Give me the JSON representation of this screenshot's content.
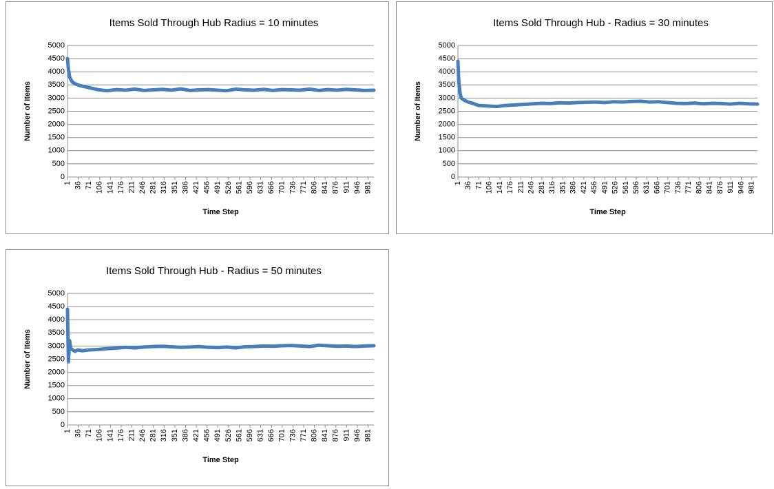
{
  "chart_data": [
    {
      "type": "line",
      "title": "Items Sold Through Hub Radius = 10 minutes",
      "x_label": "Time Step",
      "y_label": "Number of Items",
      "x": [
        1,
        4,
        8,
        12,
        18,
        25,
        35,
        50,
        70,
        100,
        130,
        160,
        190,
        220,
        250,
        280,
        310,
        340,
        370,
        400,
        430,
        460,
        490,
        520,
        550,
        580,
        610,
        640,
        670,
        700,
        730,
        760,
        790,
        820,
        850,
        880,
        910,
        940,
        970,
        1000
      ],
      "values": [
        4500,
        4100,
        3800,
        3700,
        3600,
        3550,
        3500,
        3450,
        3400,
        3320,
        3280,
        3320,
        3300,
        3340,
        3290,
        3310,
        3330,
        3300,
        3350,
        3290,
        3310,
        3320,
        3300,
        3280,
        3340,
        3310,
        3300,
        3330,
        3290,
        3320,
        3310,
        3300,
        3340,
        3290,
        3320,
        3300,
        3330,
        3310,
        3290,
        3300
      ],
      "color": "#4a7ebb",
      "xlim": [
        1,
        1000
      ],
      "ylim": [
        0,
        5000
      ],
      "xticks": [
        1,
        36,
        71,
        106,
        141,
        176,
        211,
        246,
        281,
        316,
        351,
        386,
        421,
        456,
        491,
        526,
        561,
        596,
        631,
        666,
        701,
        736,
        771,
        806,
        841,
        876,
        911,
        946,
        981
      ],
      "yticks": [
        0,
        500,
        1000,
        1500,
        2000,
        2500,
        3000,
        3500,
        4000,
        4500,
        5000
      ],
      "grid": true
    },
    {
      "type": "line",
      "title": "Items Sold Through Hub - Radius = 30 minutes",
      "x_label": "Time Step",
      "y_label": "Number of Items",
      "x": [
        1,
        4,
        8,
        12,
        18,
        25,
        35,
        50,
        70,
        100,
        130,
        160,
        190,
        220,
        250,
        280,
        310,
        340,
        370,
        400,
        430,
        460,
        490,
        520,
        550,
        580,
        610,
        640,
        670,
        700,
        730,
        760,
        790,
        820,
        850,
        880,
        910,
        940,
        970,
        1000
      ],
      "values": [
        4400,
        3600,
        3200,
        3000,
        2950,
        2900,
        2850,
        2800,
        2720,
        2700,
        2680,
        2720,
        2740,
        2760,
        2780,
        2800,
        2790,
        2820,
        2810,
        2830,
        2840,
        2850,
        2830,
        2860,
        2850,
        2870,
        2880,
        2850,
        2860,
        2830,
        2800,
        2790,
        2810,
        2780,
        2800,
        2790,
        2770,
        2800,
        2780,
        2770
      ],
      "color": "#4a7ebb",
      "xlim": [
        1,
        1000
      ],
      "ylim": [
        0,
        5000
      ],
      "xticks": [
        1,
        36,
        71,
        106,
        141,
        176,
        211,
        246,
        281,
        316,
        351,
        386,
        421,
        456,
        491,
        526,
        561,
        596,
        631,
        666,
        701,
        736,
        771,
        806,
        841,
        876,
        911,
        946,
        981
      ],
      "yticks": [
        0,
        500,
        1000,
        1500,
        2000,
        2500,
        3000,
        3500,
        4000,
        4500,
        5000
      ],
      "grid": true
    },
    {
      "type": "line",
      "title": "Items Sold Through Hub - Radius = 50 minutes",
      "x_label": "Time Step",
      "y_label": "Number of Items",
      "x": [
        1,
        4,
        8,
        12,
        18,
        25,
        35,
        50,
        70,
        100,
        130,
        160,
        190,
        220,
        250,
        280,
        310,
        340,
        370,
        400,
        430,
        460,
        490,
        520,
        550,
        580,
        610,
        640,
        670,
        700,
        730,
        760,
        790,
        820,
        850,
        880,
        910,
        940,
        970,
        1000
      ],
      "values": [
        4400,
        2400,
        3200,
        2900,
        2850,
        2800,
        2850,
        2820,
        2850,
        2870,
        2900,
        2920,
        2950,
        2930,
        2960,
        2980,
        2990,
        2970,
        2950,
        2960,
        2980,
        2950,
        2940,
        2960,
        2930,
        2970,
        2980,
        3000,
        2990,
        3010,
        3020,
        3000,
        2980,
        3030,
        3010,
        2990,
        3000,
        2980,
        3000,
        3010
      ],
      "color": "#4a7ebb",
      "xlim": [
        1,
        1000
      ],
      "ylim": [
        0,
        5000
      ],
      "xticks": [
        1,
        36,
        71,
        106,
        141,
        176,
        211,
        246,
        281,
        316,
        351,
        386,
        421,
        456,
        491,
        526,
        561,
        596,
        631,
        666,
        701,
        736,
        771,
        806,
        841,
        876,
        911,
        946,
        981
      ],
      "yticks": [
        0,
        500,
        1000,
        1500,
        2000,
        2500,
        3000,
        3500,
        4000,
        4500,
        5000
      ],
      "grid": true
    }
  ]
}
